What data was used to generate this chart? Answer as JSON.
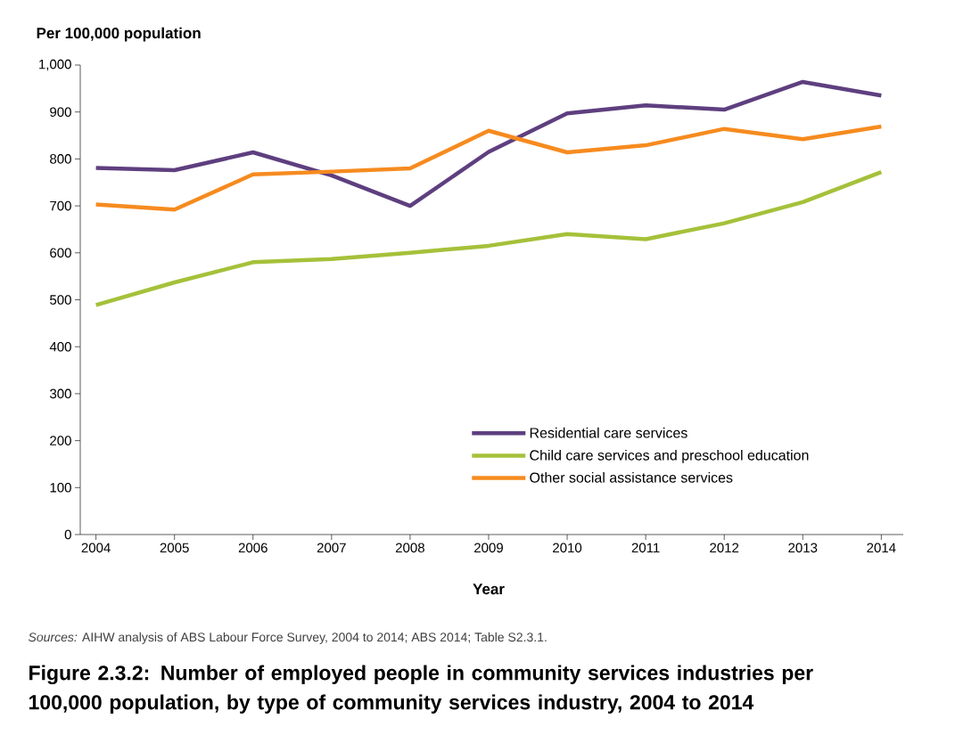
{
  "chart_data": {
    "type": "line",
    "title": "Figure 2.3.2: Number of employed people in community services industries per 100,000 population, by type of community services industry, 2004 to 2014",
    "xlabel": "Year",
    "ylabel": "Per 100,000 population",
    "annotations": [
      "*Sources:* AIHW analysis of ABS Labour Force Survey, 2004 to 2014; ABS 2014; Table S2.3.1."
    ],
    "categories": [
      "2004",
      "2005",
      "2006",
      "2007",
      "2008",
      "2009",
      "2010",
      "2011",
      "2012",
      "2013",
      "2014"
    ],
    "series": [
      {
        "name": "Residential care services",
        "color": "#5e3f7f",
        "values": [
          781,
          776,
          814,
          765,
          700,
          815,
          897,
          914,
          905,
          964,
          935
        ]
      },
      {
        "name": "Child care services and preschool education",
        "color": "#a5c13a",
        "values": [
          489,
          537,
          580,
          587,
          600,
          615,
          640,
          629,
          663,
          708,
          772
        ]
      },
      {
        "name": "Other social assistance services",
        "color": "#f68b1f",
        "values": [
          703,
          692,
          767,
          773,
          780,
          860,
          814,
          829,
          864,
          842,
          869
        ]
      }
    ],
    "ylim": [
      0,
      1000
    ],
    "yticks": [
      0,
      100,
      200,
      300,
      400,
      500,
      600,
      700,
      800,
      900,
      {
        "value": 1000,
        "label": "1,000"
      }
    ],
    "grid": false,
    "legend": "bottom right",
    "marker": "none",
    "line_style": "solid"
  }
}
